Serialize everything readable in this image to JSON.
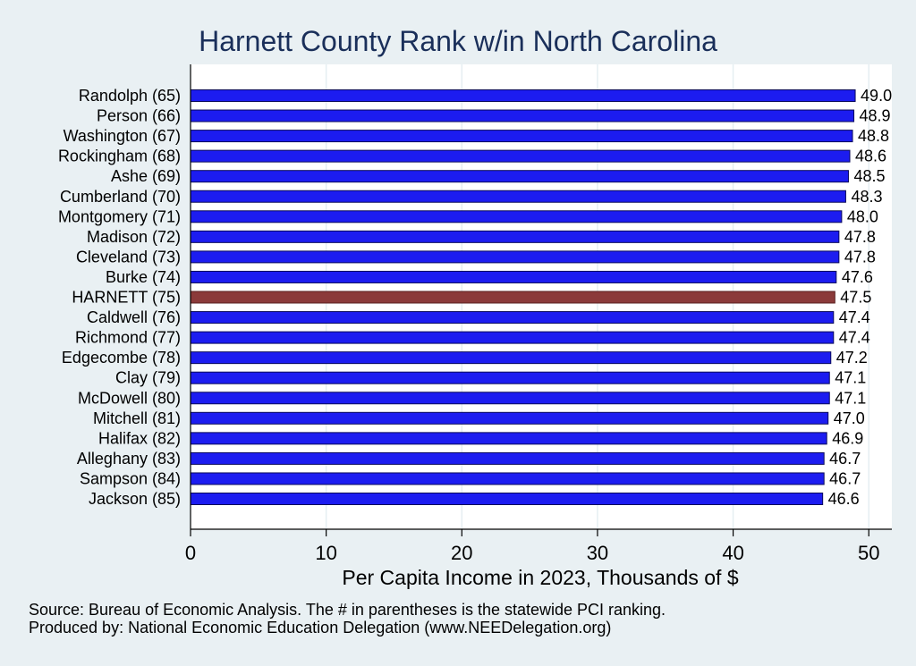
{
  "chart_data": {
    "type": "bar",
    "orientation": "horizontal",
    "title": "Harnett County Rank w/in North Carolina",
    "xlabel": "Per Capita Income in 2023, Thousands of $",
    "ylabel": "",
    "xlim": [
      0,
      51.7
    ],
    "xticks": [
      "0",
      "10",
      "20",
      "30",
      "40",
      "50"
    ],
    "grid": true,
    "highlight_category": "HARNETT (75)",
    "colors": {
      "bar": "#1c1cf0",
      "highlight": "#8b3a3a",
      "bar_outline": "#0a0a5a"
    },
    "categories": [
      "Randolph (65)",
      "Person (66)",
      "Washington (67)",
      "Rockingham (68)",
      "Ashe (69)",
      "Cumberland (70)",
      "Montgomery (71)",
      "Madison (72)",
      "Cleveland (73)",
      "Burke (74)",
      "HARNETT (75)",
      "Caldwell (76)",
      "Richmond (77)",
      "Edgecombe (78)",
      "Clay (79)",
      "McDowell (80)",
      "Mitchell (81)",
      "Halifax (82)",
      "Alleghany (83)",
      "Sampson (84)",
      "Jackson (85)"
    ],
    "values": [
      49.0,
      48.9,
      48.8,
      48.6,
      48.5,
      48.3,
      48.0,
      47.8,
      47.8,
      47.6,
      47.5,
      47.4,
      47.4,
      47.2,
      47.1,
      47.1,
      47.0,
      46.9,
      46.7,
      46.7,
      46.6
    ],
    "value_labels": [
      "49.0",
      "48.9",
      "48.8",
      "48.6",
      "48.5",
      "48.3",
      "48.0",
      "47.8",
      "47.8",
      "47.6",
      "47.5",
      "47.4",
      "47.4",
      "47.2",
      "47.1",
      "47.1",
      "47.0",
      "46.9",
      "46.7",
      "46.7",
      "46.6"
    ]
  },
  "footer": {
    "source": "Source: Bureau of Economic Analysis. The # in parentheses is the statewide PCI ranking.",
    "produced": "Produced by: National Economic Education Delegation (www.NEEDelegation.org)"
  }
}
